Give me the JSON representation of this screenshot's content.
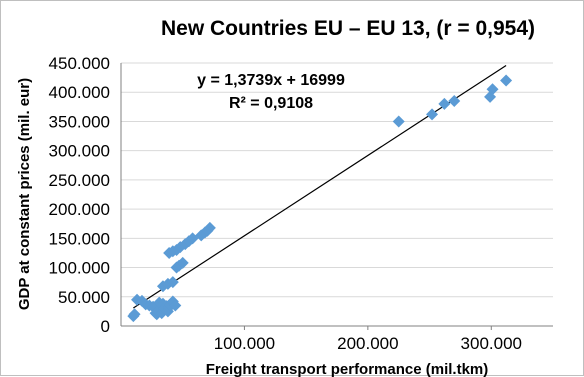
{
  "chart_data": {
    "type": "scatter",
    "title": "New Countries EU – EU 13, (r = 0,954)",
    "xlabel": "Freight transport performance (mil.tkm)",
    "ylabel": "GDP at constant prices (mil. eur)",
    "xlim": [
      0,
      350000
    ],
    "ylim": [
      0,
      450000
    ],
    "x_ticks": [
      {
        "value": 100000,
        "label": "100.000"
      },
      {
        "value": 200000,
        "label": "200.000"
      },
      {
        "value": 300000,
        "label": "300.000"
      }
    ],
    "y_ticks": [
      {
        "value": 0,
        "label": "0"
      },
      {
        "value": 50000,
        "label": "50.000"
      },
      {
        "value": 100000,
        "label": "100.000"
      },
      {
        "value": 150000,
        "label": "150.000"
      },
      {
        "value": 200000,
        "label": "200.000"
      },
      {
        "value": 250000,
        "label": "250.000"
      },
      {
        "value": 300000,
        "label": "300.000"
      },
      {
        "value": 350000,
        "label": "350.000"
      },
      {
        "value": 400000,
        "label": "400.000"
      },
      {
        "value": 450000,
        "label": "450.000"
      }
    ],
    "grid": true,
    "marker": "diamond",
    "marker_color": "#5b9bd5",
    "points": [
      [
        10000,
        17000
      ],
      [
        11000,
        20000
      ],
      [
        13000,
        45000
      ],
      [
        17000,
        43000
      ],
      [
        20000,
        37000
      ],
      [
        23000,
        35000
      ],
      [
        26000,
        33000
      ],
      [
        28000,
        22000
      ],
      [
        29000,
        20000
      ],
      [
        30000,
        25000
      ],
      [
        31000,
        40000
      ],
      [
        33000,
        22000
      ],
      [
        34000,
        38000
      ],
      [
        35000,
        30000
      ],
      [
        37000,
        34000
      ],
      [
        38000,
        25000
      ],
      [
        39000,
        32000
      ],
      [
        40000,
        36000
      ],
      [
        42000,
        42000
      ],
      [
        44000,
        35000
      ],
      [
        34000,
        68000
      ],
      [
        38000,
        72000
      ],
      [
        42000,
        75000
      ],
      [
        45000,
        100000
      ],
      [
        47000,
        103000
      ],
      [
        50000,
        108000
      ],
      [
        39000,
        125000
      ],
      [
        42000,
        128000
      ],
      [
        45000,
        130000
      ],
      [
        48000,
        135000
      ],
      [
        52000,
        140000
      ],
      [
        55000,
        145000
      ],
      [
        58000,
        150000
      ],
      [
        65000,
        155000
      ],
      [
        68000,
        160000
      ],
      [
        70000,
        163000
      ],
      [
        72000,
        168000
      ],
      [
        225000,
        350000
      ],
      [
        252000,
        362000
      ],
      [
        262000,
        380000
      ],
      [
        270000,
        385000
      ],
      [
        299000,
        392000
      ],
      [
        301000,
        405000
      ],
      [
        312000,
        420000
      ]
    ],
    "trendline": {
      "slope": 1.3739,
      "intercept": 16999,
      "x_range": [
        10000,
        312000
      ],
      "color": "#000000"
    },
    "annotations": [
      "y = 1,3739x + 16999",
      "R² = 0,9108"
    ]
  }
}
